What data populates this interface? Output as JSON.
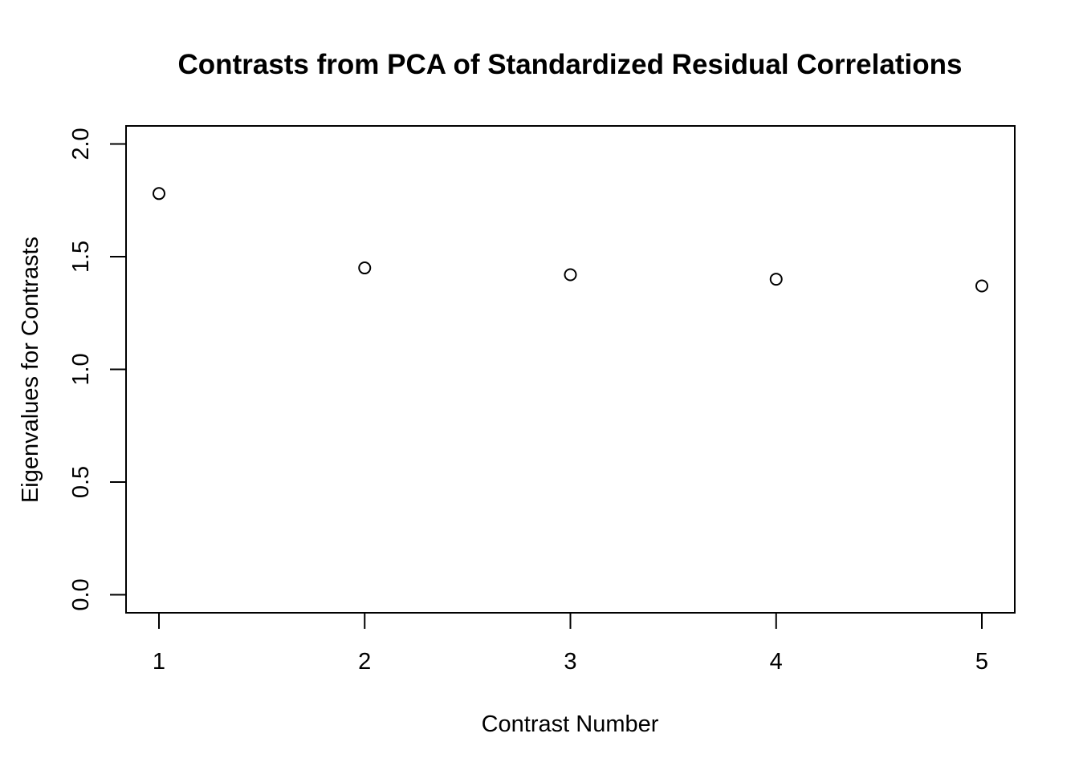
{
  "chart_data": {
    "type": "scatter",
    "title": "Contrasts from PCA of Standardized Residual Correlations",
    "xlabel": "Contrast Number",
    "ylabel": "Eigenvalues for Contrasts",
    "x": [
      1,
      2,
      3,
      4,
      5
    ],
    "y": [
      1.78,
      1.45,
      1.42,
      1.4,
      1.37
    ],
    "xlim": [
      0.84,
      5.16
    ],
    "ylim": [
      -0.08,
      2.08
    ],
    "xticks": [
      1,
      2,
      3,
      4,
      5
    ],
    "xtick_labels": [
      "1",
      "2",
      "3",
      "4",
      "5"
    ],
    "yticks": [
      0.0,
      0.5,
      1.0,
      1.5,
      2.0
    ],
    "ytick_labels": [
      "0.0",
      "0.5",
      "1.0",
      "1.5",
      "2.0"
    ],
    "marker": "open-circle",
    "grid": false,
    "legend": "none",
    "colors": {
      "marker": "#000000",
      "axes": "#000000",
      "background": "#ffffff"
    }
  }
}
